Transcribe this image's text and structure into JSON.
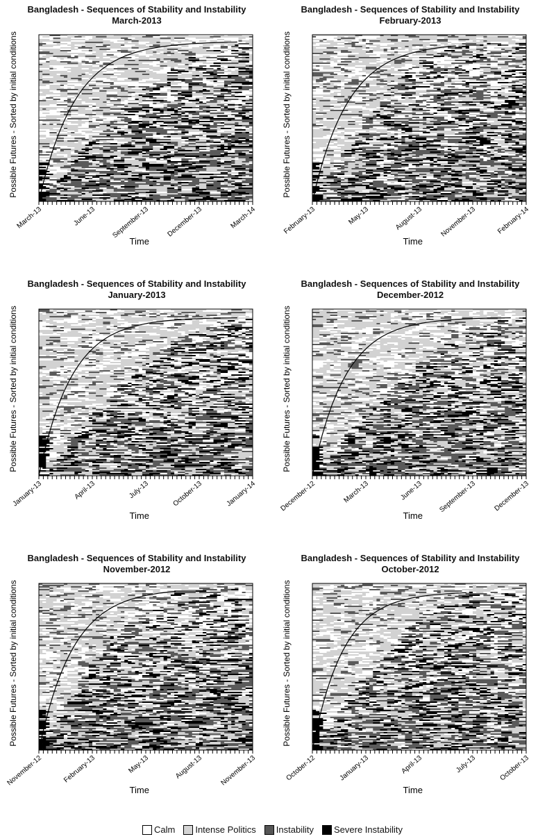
{
  "legend": [
    {
      "label": "Calm",
      "color": "#ffffff"
    },
    {
      "label": "Intense Politics",
      "color": "#d4d4d4"
    },
    {
      "label": "Instability",
      "color": "#555555"
    },
    {
      "label": "Severe Instability",
      "color": "#000000"
    }
  ],
  "chart_data": [
    {
      "type": "heatmap",
      "title": "Bangladesh - Sequences of Stability and Instability",
      "subtitle": "March-2013",
      "xlabel": "Time",
      "ylabel": "Possible Futures - Sorted by initial conditions",
      "x_ticks": [
        "March-13",
        "June-13",
        "September-13",
        "December-13",
        "March-14"
      ],
      "states": [
        "Calm",
        "Intense Politics",
        "Instability",
        "Severe Instability"
      ]
    },
    {
      "type": "heatmap",
      "title": "Bangladesh - Sequences of Stability and Instability",
      "subtitle": "February-2013",
      "xlabel": "Time",
      "ylabel": "Possible Futures - Sorted by initial conditions",
      "x_ticks": [
        "February-13",
        "May-13",
        "August-13",
        "November-13",
        "February-14"
      ],
      "states": [
        "Calm",
        "Intense Politics",
        "Instability",
        "Severe Instability"
      ]
    },
    {
      "type": "heatmap",
      "title": "Bangladesh - Sequences of Stability and Instability",
      "subtitle": "January-2013",
      "xlabel": "Time",
      "ylabel": "Possible Futures - Sorted by initial conditions",
      "x_ticks": [
        "January-13",
        "April-13",
        "July-13",
        "October-13",
        "January-14"
      ],
      "states": [
        "Calm",
        "Intense Politics",
        "Instability",
        "Severe Instability"
      ]
    },
    {
      "type": "heatmap",
      "title": "Bangladesh - Sequences of Stability and Instability",
      "subtitle": "December-2012",
      "xlabel": "Time",
      "ylabel": "Possible Futures - Sorted by initial conditions",
      "x_ticks": [
        "December-12",
        "March-13",
        "June-13",
        "September-13",
        "December-13"
      ],
      "states": [
        "Calm",
        "Intense Politics",
        "Instability",
        "Severe Instability"
      ]
    },
    {
      "type": "heatmap",
      "title": "Bangladesh - Sequences of Stability and Instability",
      "subtitle": "November-2012",
      "xlabel": "Time",
      "ylabel": "Possible Futures - Sorted by initial conditions",
      "x_ticks": [
        "November-12",
        "February-13",
        "May-13",
        "August-13",
        "November-13"
      ],
      "states": [
        "Calm",
        "Intense Politics",
        "Instability",
        "Severe Instability"
      ]
    },
    {
      "type": "heatmap",
      "title": "Bangladesh - Sequences of Stability and Instability",
      "subtitle": "October-2012",
      "xlabel": "Time",
      "ylabel": "Possible Futures - Sorted by initial conditions",
      "x_ticks": [
        "October-12",
        "January-13",
        "April-13",
        "July-13",
        "October-13"
      ],
      "states": [
        "Calm",
        "Intense Politics",
        "Instability",
        "Severe Instability"
      ]
    }
  ]
}
